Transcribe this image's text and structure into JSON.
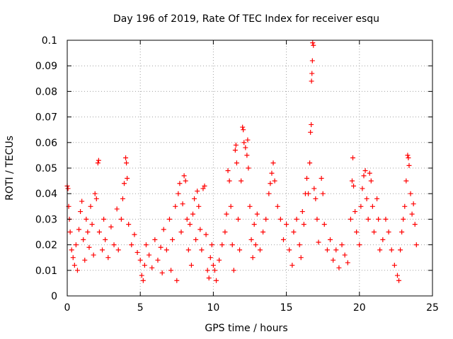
{
  "chart_data": {
    "type": "scatter",
    "title": "Day 196 of 2019, Rate Of TEC Index for receiver esqu",
    "xlabel": "GPS time / hours",
    "ylabel": "ROTI / TECUs",
    "xlim": [
      0,
      25
    ],
    "ylim": [
      0,
      0.1
    ],
    "xticks": [
      0,
      5,
      10,
      15,
      20,
      25
    ],
    "xtick_labels": [
      "0",
      "5",
      "10",
      "15",
      "20",
      "25"
    ],
    "yticks": [
      0,
      0.01,
      0.02,
      0.03,
      0.04,
      0.05,
      0.06,
      0.07,
      0.08,
      0.09,
      0.1
    ],
    "ytick_labels": [
      "0",
      "0.01",
      "0.02",
      "0.03",
      "0.04",
      "0.05",
      "0.06",
      "0.07",
      "0.08",
      "0.09",
      "0.1"
    ],
    "grid": true,
    "marker": "+",
    "color": "#ff0000",
    "series": [
      {
        "name": "ROTI",
        "points": [
          [
            0.0,
            0.043
          ],
          [
            0.05,
            0.042
          ],
          [
            0.1,
            0.035
          ],
          [
            0.15,
            0.03
          ],
          [
            0.2,
            0.025
          ],
          [
            0.3,
            0.018
          ],
          [
            0.4,
            0.015
          ],
          [
            0.5,
            0.012
          ],
          [
            0.6,
            0.02
          ],
          [
            0.7,
            0.01
          ],
          [
            0.8,
            0.026
          ],
          [
            0.9,
            0.033
          ],
          [
            1.0,
            0.037
          ],
          [
            1.1,
            0.022
          ],
          [
            1.2,
            0.014
          ],
          [
            1.3,
            0.03
          ],
          [
            1.4,
            0.025
          ],
          [
            1.5,
            0.019
          ],
          [
            1.6,
            0.035
          ],
          [
            1.7,
            0.028
          ],
          [
            1.8,
            0.016
          ],
          [
            1.9,
            0.04
          ],
          [
            2.0,
            0.038
          ],
          [
            2.1,
            0.052
          ],
          [
            2.15,
            0.053
          ],
          [
            2.2,
            0.025
          ],
          [
            2.4,
            0.018
          ],
          [
            2.5,
            0.03
          ],
          [
            2.6,
            0.022
          ],
          [
            2.8,
            0.015
          ],
          [
            3.0,
            0.027
          ],
          [
            3.2,
            0.02
          ],
          [
            3.4,
            0.034
          ],
          [
            3.5,
            0.018
          ],
          [
            3.7,
            0.03
          ],
          [
            3.8,
            0.038
          ],
          [
            3.9,
            0.044
          ],
          [
            4.0,
            0.054
          ],
          [
            4.05,
            0.052
          ],
          [
            4.1,
            0.046
          ],
          [
            4.2,
            0.028
          ],
          [
            4.4,
            0.02
          ],
          [
            4.6,
            0.024
          ],
          [
            4.8,
            0.017
          ],
          [
            5.0,
            0.014
          ],
          [
            5.1,
            0.008
          ],
          [
            5.2,
            0.006
          ],
          [
            5.3,
            0.012
          ],
          [
            5.4,
            0.02
          ],
          [
            5.6,
            0.016
          ],
          [
            5.8,
            0.011
          ],
          [
            6.0,
            0.022
          ],
          [
            6.2,
            0.014
          ],
          [
            6.4,
            0.019
          ],
          [
            6.5,
            0.009
          ],
          [
            6.6,
            0.026
          ],
          [
            6.8,
            0.018
          ],
          [
            7.0,
            0.03
          ],
          [
            7.1,
            0.01
          ],
          [
            7.2,
            0.022
          ],
          [
            7.4,
            0.035
          ],
          [
            7.5,
            0.006
          ],
          [
            7.6,
            0.04
          ],
          [
            7.7,
            0.044
          ],
          [
            7.8,
            0.025
          ],
          [
            7.9,
            0.036
          ],
          [
            8.0,
            0.047
          ],
          [
            8.1,
            0.045
          ],
          [
            8.2,
            0.03
          ],
          [
            8.3,
            0.018
          ],
          [
            8.4,
            0.028
          ],
          [
            8.5,
            0.012
          ],
          [
            8.6,
            0.032
          ],
          [
            8.7,
            0.038
          ],
          [
            8.8,
            0.022
          ],
          [
            8.9,
            0.041
          ],
          [
            9.0,
            0.035
          ],
          [
            9.1,
            0.026
          ],
          [
            9.2,
            0.018
          ],
          [
            9.3,
            0.042
          ],
          [
            9.4,
            0.043
          ],
          [
            9.5,
            0.024
          ],
          [
            9.6,
            0.01
          ],
          [
            9.7,
            0.007
          ],
          [
            9.8,
            0.015
          ],
          [
            9.9,
            0.02
          ],
          [
            10.0,
            0.012
          ],
          [
            10.1,
            0.01
          ],
          [
            10.2,
            0.006
          ],
          [
            10.4,
            0.014
          ],
          [
            10.6,
            0.02
          ],
          [
            10.8,
            0.025
          ],
          [
            10.9,
            0.032
          ],
          [
            11.0,
            0.049
          ],
          [
            11.1,
            0.045
          ],
          [
            11.2,
            0.035
          ],
          [
            11.3,
            0.02
          ],
          [
            11.4,
            0.01
          ],
          [
            11.5,
            0.057
          ],
          [
            11.55,
            0.059
          ],
          [
            11.6,
            0.052
          ],
          [
            11.7,
            0.03
          ],
          [
            11.8,
            0.018
          ],
          [
            11.9,
            0.045
          ],
          [
            12.0,
            0.066
          ],
          [
            12.05,
            0.065
          ],
          [
            12.1,
            0.06
          ],
          [
            12.2,
            0.058
          ],
          [
            12.3,
            0.055
          ],
          [
            12.35,
            0.061
          ],
          [
            12.4,
            0.05
          ],
          [
            12.5,
            0.035
          ],
          [
            12.6,
            0.022
          ],
          [
            12.7,
            0.015
          ],
          [
            12.8,
            0.028
          ],
          [
            12.9,
            0.02
          ],
          [
            13.0,
            0.032
          ],
          [
            13.2,
            0.018
          ],
          [
            13.4,
            0.025
          ],
          [
            13.6,
            0.03
          ],
          [
            13.8,
            0.04
          ],
          [
            13.9,
            0.044
          ],
          [
            14.0,
            0.048
          ],
          [
            14.1,
            0.052
          ],
          [
            14.2,
            0.045
          ],
          [
            14.4,
            0.035
          ],
          [
            14.6,
            0.03
          ],
          [
            14.8,
            0.022
          ],
          [
            15.0,
            0.028
          ],
          [
            15.2,
            0.018
          ],
          [
            15.4,
            0.012
          ],
          [
            15.5,
            0.025
          ],
          [
            15.7,
            0.03
          ],
          [
            15.9,
            0.02
          ],
          [
            16.0,
            0.015
          ],
          [
            16.1,
            0.033
          ],
          [
            16.2,
            0.028
          ],
          [
            16.3,
            0.04
          ],
          [
            16.4,
            0.046
          ],
          [
            16.5,
            0.04
          ],
          [
            16.6,
            0.052
          ],
          [
            16.65,
            0.064
          ],
          [
            16.7,
            0.067
          ],
          [
            16.72,
            0.084
          ],
          [
            16.75,
            0.087
          ],
          [
            16.78,
            0.092
          ],
          [
            16.8,
            0.099
          ],
          [
            16.85,
            0.098
          ],
          [
            16.9,
            0.042
          ],
          [
            17.0,
            0.038
          ],
          [
            17.1,
            0.03
          ],
          [
            17.2,
            0.021
          ],
          [
            17.4,
            0.046
          ],
          [
            17.5,
            0.04
          ],
          [
            17.6,
            0.028
          ],
          [
            17.8,
            0.018
          ],
          [
            18.0,
            0.022
          ],
          [
            18.2,
            0.014
          ],
          [
            18.4,
            0.018
          ],
          [
            18.6,
            0.011
          ],
          [
            18.8,
            0.02
          ],
          [
            19.0,
            0.016
          ],
          [
            19.2,
            0.013
          ],
          [
            19.4,
            0.03
          ],
          [
            19.5,
            0.045
          ],
          [
            19.55,
            0.054
          ],
          [
            19.6,
            0.043
          ],
          [
            19.7,
            0.033
          ],
          [
            19.8,
            0.025
          ],
          [
            20.0,
            0.02
          ],
          [
            20.1,
            0.035
          ],
          [
            20.2,
            0.042
          ],
          [
            20.3,
            0.047
          ],
          [
            20.4,
            0.049
          ],
          [
            20.5,
            0.038
          ],
          [
            20.6,
            0.03
          ],
          [
            20.7,
            0.048
          ],
          [
            20.8,
            0.045
          ],
          [
            20.9,
            0.035
          ],
          [
            21.0,
            0.025
          ],
          [
            21.2,
            0.038
          ],
          [
            21.3,
            0.03
          ],
          [
            21.4,
            0.018
          ],
          [
            21.6,
            0.022
          ],
          [
            21.8,
            0.03
          ],
          [
            22.0,
            0.025
          ],
          [
            22.2,
            0.018
          ],
          [
            22.4,
            0.012
          ],
          [
            22.6,
            0.008
          ],
          [
            22.7,
            0.006
          ],
          [
            22.8,
            0.018
          ],
          [
            22.9,
            0.025
          ],
          [
            23.0,
            0.03
          ],
          [
            23.1,
            0.035
          ],
          [
            23.2,
            0.045
          ],
          [
            23.3,
            0.055
          ],
          [
            23.35,
            0.054
          ],
          [
            23.4,
            0.051
          ],
          [
            23.5,
            0.04
          ],
          [
            23.6,
            0.032
          ],
          [
            23.7,
            0.036
          ],
          [
            23.8,
            0.028
          ],
          [
            23.9,
            0.02
          ]
        ]
      }
    ]
  }
}
